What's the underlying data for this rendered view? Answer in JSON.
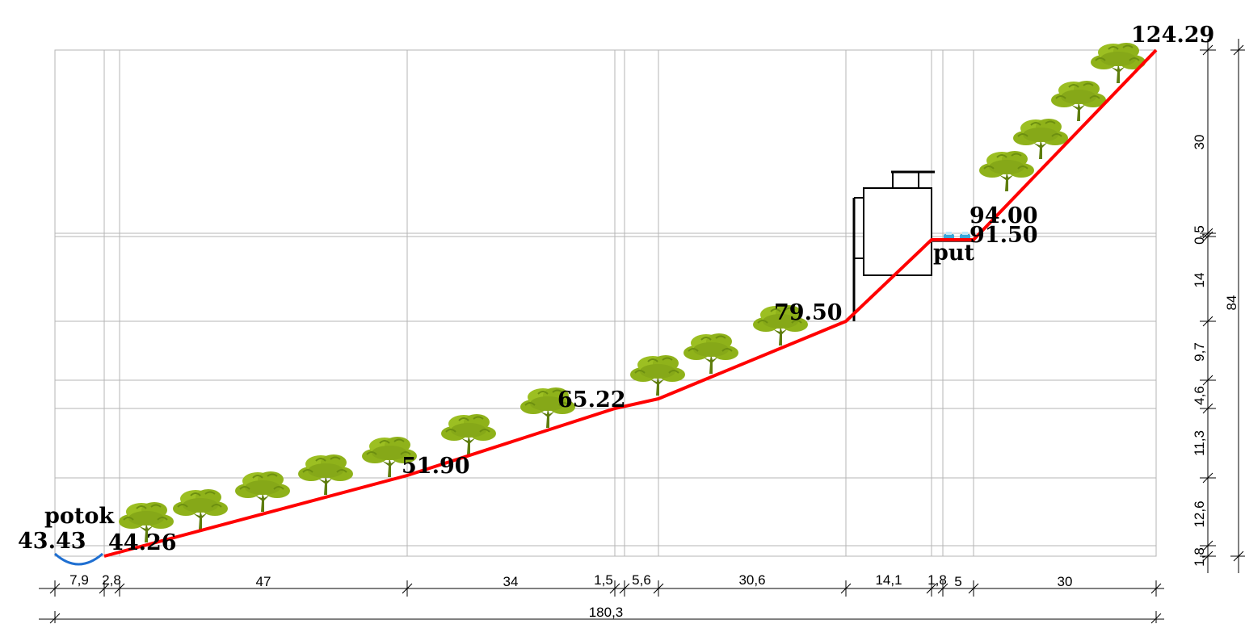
{
  "labels": {
    "stream": "potok",
    "road": "put",
    "stream_level": "43.43",
    "e1": "44.26",
    "e2": "51.90",
    "e3": "65.22",
    "e4": "79.50",
    "e5": "94.00",
    "e6": "91.50",
    "e_top": "124.29"
  },
  "horizontal_dims": [
    "7,9",
    "2,8",
    "47",
    "34",
    "1,5",
    "5,6",
    "30,6",
    "14,1",
    "1,8",
    "5",
    "30"
  ],
  "total_horizontal": "180,3",
  "vertical_dims": [
    "1,8",
    "12,6",
    "11,3",
    "4,6",
    "9,7",
    "14",
    "0,5",
    "30"
  ],
  "total_vertical": "84",
  "colors": {
    "terrain": "#ff0000",
    "stream": "#1f6fd1",
    "tree": "#8fb21a",
    "tree_dark": "#5e7d0c",
    "car": "#3aa6d8",
    "grid": "#b5b5b5"
  }
}
